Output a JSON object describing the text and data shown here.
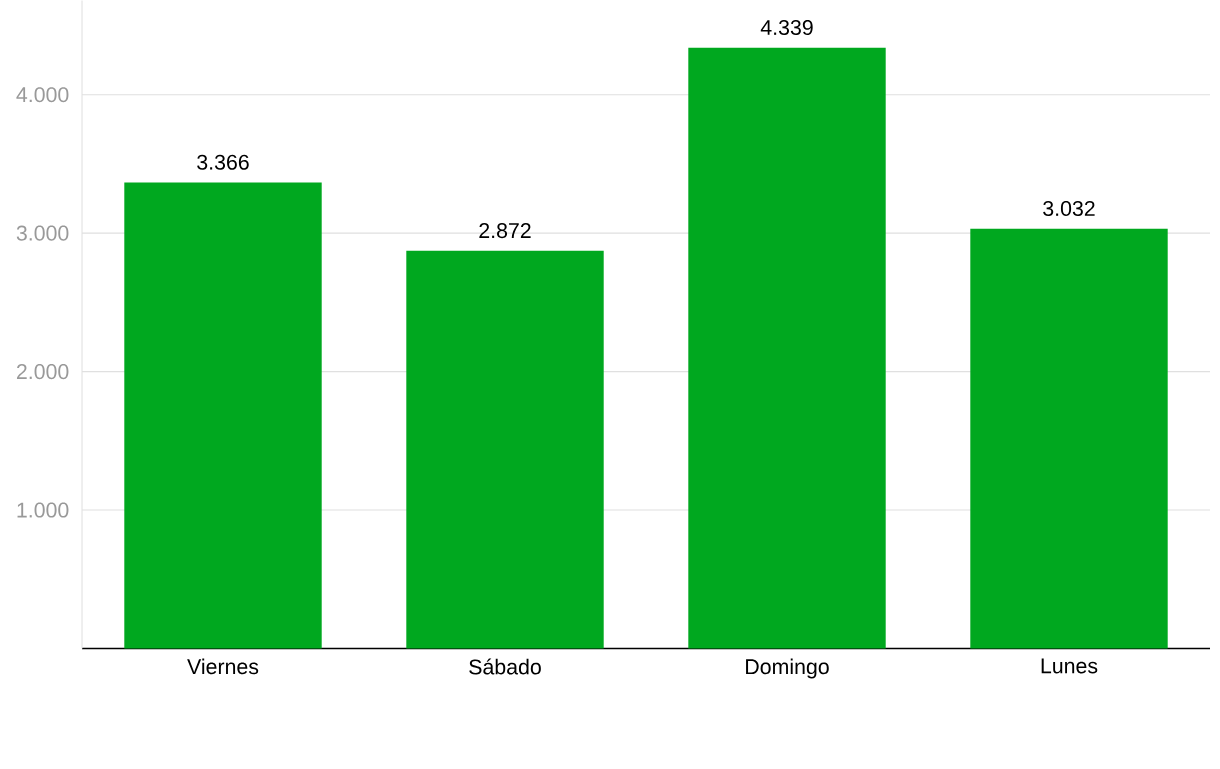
{
  "chart_data": {
    "type": "bar",
    "categories": [
      "Viernes",
      "Sábado",
      "Domingo",
      "Lunes"
    ],
    "values": [
      3366,
      2872,
      4339,
      3032
    ],
    "value_labels": [
      "3.366",
      "2.872",
      "4.339",
      "3.032"
    ],
    "color": "#00a81f",
    "ylim": [
      0,
      4680
    ],
    "yticks": [
      {
        "value": 1000,
        "label": "1.000"
      },
      {
        "value": 2000,
        "label": "2.000"
      },
      {
        "value": 3000,
        "label": "3.000"
      },
      {
        "value": 4000,
        "label": "4.000"
      }
    ],
    "grid": "y"
  }
}
